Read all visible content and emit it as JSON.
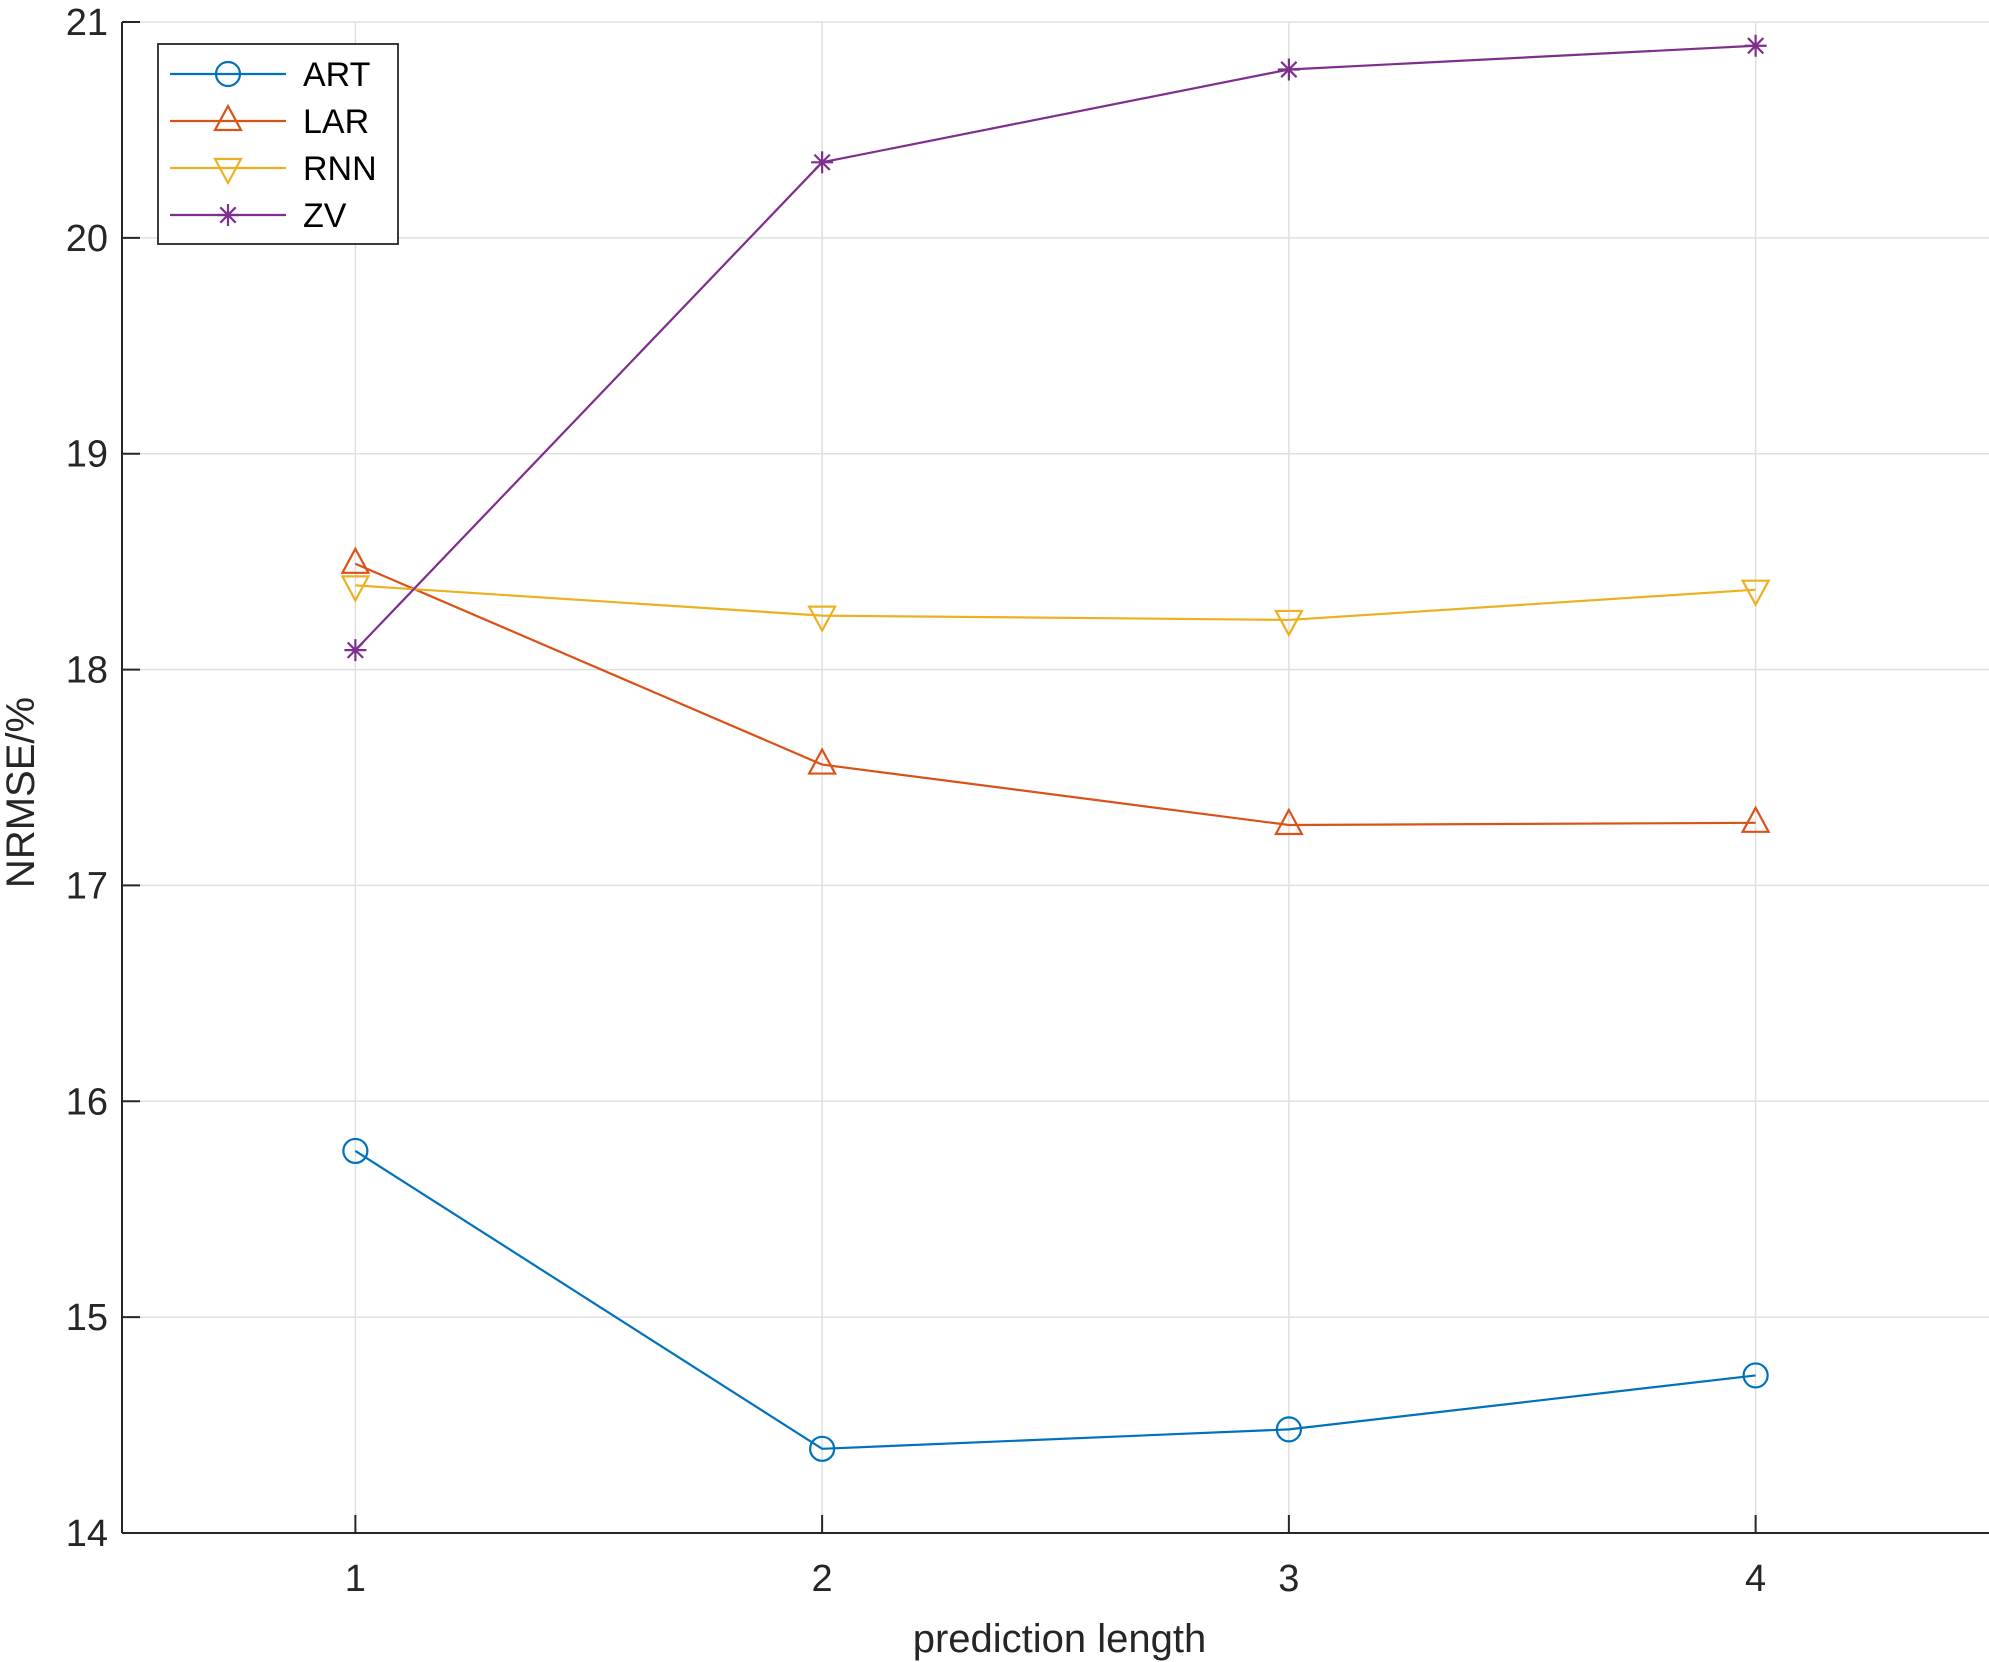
{
  "chart_data": {
    "type": "line",
    "title": "",
    "xlabel": "prediction length",
    "ylabel": "NRMSE/%",
    "x": [
      1,
      2,
      3,
      4
    ],
    "xlim": [
      0.5,
      4.5
    ],
    "ylim": [
      14,
      21
    ],
    "xticks": [
      "1",
      "2",
      "3",
      "4"
    ],
    "yticks": [
      "14",
      "15",
      "16",
      "17",
      "18",
      "19",
      "20",
      "21"
    ],
    "grid": true,
    "legend_position": "top-left",
    "series": [
      {
        "name": "ART",
        "values": [
          15.77,
          14.39,
          14.48,
          14.73
        ],
        "color": "#0072BD",
        "marker": "circle"
      },
      {
        "name": "LAR",
        "values": [
          18.49,
          17.56,
          17.28,
          17.29
        ],
        "color": "#D95319",
        "marker": "triangle-up"
      },
      {
        "name": "RNN",
        "values": [
          18.39,
          18.25,
          18.23,
          18.37
        ],
        "color": "#EDB120",
        "marker": "triangle-down"
      },
      {
        "name": "ZV",
        "values": [
          18.09,
          20.35,
          20.78,
          20.89
        ],
        "color": "#7E2F8E",
        "marker": "asterisk"
      }
    ]
  }
}
